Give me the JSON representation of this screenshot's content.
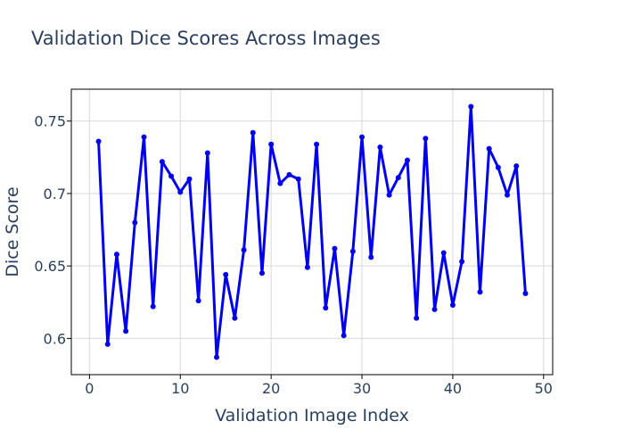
{
  "chart_data": {
    "type": "line",
    "title": "Validation Dice Scores Across Images",
    "xlabel": "Validation Image Index",
    "ylabel": "Dice Score",
    "xlim": [
      -2,
      51
    ],
    "ylim": [
      0.575,
      0.772
    ],
    "x_ticks": [
      0,
      10,
      20,
      30,
      40,
      50
    ],
    "y_ticks": [
      0.6,
      0.65,
      0.7,
      0.75
    ],
    "y_tick_labels": [
      "0.6",
      "0.65",
      "0.7",
      "0.75"
    ],
    "grid": true,
    "line_color": "#0000ee",
    "series": [
      {
        "x": [
          1,
          2,
          3,
          4,
          5,
          6,
          7,
          8,
          9,
          10,
          11,
          12,
          13,
          14,
          15,
          16,
          17,
          18,
          19,
          20,
          21,
          22,
          23,
          24,
          25,
          26,
          27,
          28,
          29,
          30,
          31,
          32,
          33,
          34,
          35,
          36,
          37,
          38,
          39,
          40,
          41,
          42,
          43,
          44,
          45,
          46,
          47,
          48
        ],
        "values": [
          0.736,
          0.596,
          0.658,
          0.605,
          0.68,
          0.739,
          0.622,
          0.722,
          0.712,
          0.701,
          0.71,
          0.626,
          0.728,
          0.587,
          0.644,
          0.614,
          0.661,
          0.742,
          0.645,
          0.734,
          0.707,
          0.713,
          0.71,
          0.649,
          0.734,
          0.621,
          0.662,
          0.602,
          0.66,
          0.739,
          0.656,
          0.732,
          0.699,
          0.711,
          0.723,
          0.614,
          0.738,
          0.62,
          0.659,
          0.623,
          0.653,
          0.76,
          0.632,
          0.731,
          0.718,
          0.699,
          0.719,
          0.631
        ]
      }
    ]
  }
}
